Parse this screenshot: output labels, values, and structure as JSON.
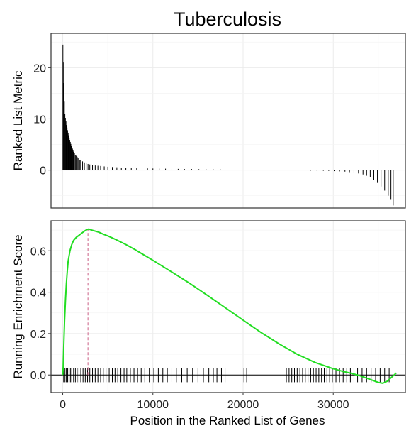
{
  "chart_data": [
    {
      "type": "bar",
      "title": "Tuberculosis",
      "xlabel": "",
      "ylabel": "Ranked List Metric",
      "xlim": [
        -1300,
        38000
      ],
      "ylim": [
        -7.4,
        26.7
      ],
      "x_ticks": [
        0,
        10000,
        20000,
        30000
      ],
      "y_ticks": [
        0,
        10,
        20
      ],
      "y_tick_labels": [
        "0",
        "10",
        "20"
      ],
      "grid": true,
      "bars": [
        [
          20,
          24.5
        ],
        [
          60,
          21
        ],
        [
          120,
          17
        ],
        [
          180,
          13.5
        ],
        [
          240,
          11
        ],
        [
          300,
          10.2
        ],
        [
          360,
          9.5
        ],
        [
          420,
          8.8
        ],
        [
          480,
          8.3
        ],
        [
          540,
          7.8
        ],
        [
          600,
          7.3
        ],
        [
          660,
          6.8
        ],
        [
          720,
          6.3
        ],
        [
          780,
          5.9
        ],
        [
          840,
          5.5
        ],
        [
          900,
          5.1
        ],
        [
          960,
          4.8
        ],
        [
          1020,
          4.5
        ],
        [
          1080,
          4.2
        ],
        [
          1140,
          3.9
        ],
        [
          1200,
          3.6
        ],
        [
          1300,
          3.3
        ],
        [
          1400,
          3.0
        ],
        [
          1500,
          2.8
        ],
        [
          1600,
          2.6
        ],
        [
          1700,
          2.4
        ],
        [
          1800,
          2.2
        ],
        [
          1900,
          2.0
        ],
        [
          2000,
          1.9
        ],
        [
          2200,
          1.7
        ],
        [
          2400,
          1.5
        ],
        [
          2600,
          1.35
        ],
        [
          2800,
          1.2
        ],
        [
          3000,
          1.1
        ],
        [
          3300,
          1.0
        ],
        [
          3600,
          0.9
        ],
        [
          3900,
          0.85
        ],
        [
          4200,
          0.8
        ],
        [
          4600,
          0.72
        ],
        [
          5000,
          0.65
        ],
        [
          5500,
          0.6
        ],
        [
          6000,
          0.55
        ],
        [
          6500,
          0.5
        ],
        [
          7000,
          0.46
        ],
        [
          7600,
          0.43
        ],
        [
          8200,
          0.4
        ],
        [
          8800,
          0.37
        ],
        [
          9400,
          0.34
        ],
        [
          10000,
          0.32
        ],
        [
          10700,
          0.3
        ],
        [
          11400,
          0.28
        ],
        [
          12100,
          0.26
        ],
        [
          12800,
          0.24
        ],
        [
          13500,
          0.22
        ],
        [
          14300,
          0.2
        ],
        [
          15100,
          0.18
        ],
        [
          15900,
          0.16
        ],
        [
          16700,
          0.14
        ],
        [
          17500,
          0.12
        ],
        [
          27500,
          -0.1
        ],
        [
          28200,
          -0.12
        ],
        [
          28900,
          -0.14
        ],
        [
          29500,
          -0.16
        ],
        [
          30100,
          -0.2
        ],
        [
          30700,
          -0.25
        ],
        [
          31300,
          -0.3
        ],
        [
          31800,
          -0.4
        ],
        [
          32300,
          -0.5
        ],
        [
          32800,
          -0.65
        ],
        [
          33300,
          -0.85
        ],
        [
          33700,
          -1.1
        ],
        [
          34100,
          -1.4
        ],
        [
          34500,
          -1.9
        ],
        [
          34900,
          -2.5
        ],
        [
          35300,
          -3.2
        ],
        [
          35700,
          -4.0
        ],
        [
          36100,
          -5.0
        ],
        [
          36400,
          -5.8
        ],
        [
          36650,
          -6.9
        ]
      ]
    },
    {
      "type": "line",
      "xlabel": "Position in the Ranked List of Genes",
      "ylabel": "Running Enrichment Score",
      "xlim": [
        -1300,
        38000
      ],
      "ylim": [
        -0.085,
        0.745
      ],
      "x_ticks": [
        0,
        10000,
        20000,
        30000
      ],
      "x_tick_labels": [
        "0",
        "10000",
        "20000",
        "30000"
      ],
      "y_ticks": [
        0,
        0.2,
        0.4,
        0.6
      ],
      "y_tick_labels": [
        "0.0",
        "0.2",
        "0.4",
        "0.6"
      ],
      "grid": true,
      "line_color": "#22dd22",
      "peak_line_color": "#d47a9a",
      "peak_x": 2800,
      "series": [
        {
          "x": [
            0,
            50,
            100,
            200,
            300,
            400,
            500,
            600,
            800,
            1000,
            1200,
            1500,
            1800,
            2100,
            2400,
            2700,
            2900,
            3200,
            3600,
            4000,
            4500,
            5000,
            5500,
            6000,
            7000,
            8000,
            9000,
            10000,
            12000,
            14000,
            16000,
            18000,
            20000,
            22000,
            24000,
            26000,
            28000,
            30000,
            31000,
            32000,
            33000,
            34000,
            35000,
            35500,
            36000,
            36500,
            37000
          ],
          "y": [
            0,
            0.04,
            0.12,
            0.26,
            0.36,
            0.44,
            0.5,
            0.55,
            0.6,
            0.63,
            0.65,
            0.665,
            0.675,
            0.685,
            0.695,
            0.703,
            0.705,
            0.7,
            0.695,
            0.69,
            0.68,
            0.672,
            0.662,
            0.652,
            0.63,
            0.606,
            0.58,
            0.554,
            0.5,
            0.445,
            0.386,
            0.326,
            0.265,
            0.205,
            0.15,
            0.1,
            0.06,
            0.03,
            0.018,
            0.008,
            -0.004,
            -0.02,
            -0.036,
            -0.04,
            -0.03,
            -0.01,
            0.01
          ]
        }
      ],
      "hits": [
        100,
        250,
        400,
        550,
        700,
        850,
        1000,
        1200,
        1400,
        1600,
        1800,
        2000,
        2250,
        2500,
        2750,
        3000,
        3300,
        3600,
        3900,
        4200,
        4500,
        4800,
        5150,
        5500,
        5800,
        6100,
        6450,
        6800,
        7100,
        7500,
        7900,
        8300,
        8700,
        9100,
        9600,
        10100,
        10600,
        11100,
        11600,
        12100,
        12600,
        13200,
        13800,
        14400,
        15000,
        15600,
        16200,
        16700,
        17100,
        17600,
        18000,
        20100,
        20400,
        24800,
        25100,
        25400,
        25700,
        26000,
        26300,
        26600,
        26900,
        27200,
        27500,
        27800,
        28100,
        28400,
        28700,
        29000,
        29300,
        29600,
        29900,
        30300,
        30700,
        31100,
        31500,
        31900,
        32300,
        32700,
        33200,
        33700,
        34200,
        34700,
        35200,
        35700,
        36200
      ]
    }
  ]
}
